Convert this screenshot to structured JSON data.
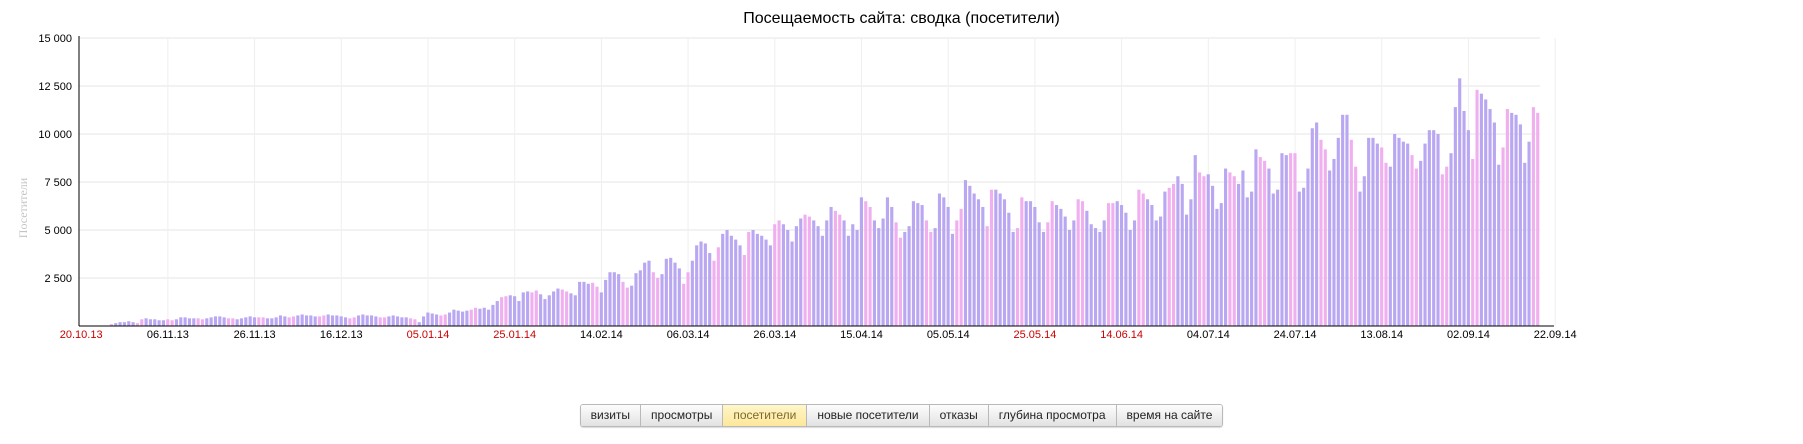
{
  "chart_data": {
    "type": "bar",
    "title": "Посещаемость сайта: сводка (посетители)",
    "ylabel": "Посетители",
    "ylim": [
      0,
      15000
    ],
    "yticks": [
      2500,
      5000,
      7500,
      10000,
      12500,
      15000
    ],
    "ytick_labels": [
      "2 500",
      "5 000",
      "7 500",
      "10 000",
      "12 500",
      "15 000"
    ],
    "x_start": "20.10.13",
    "x_ticks": [
      {
        "label": "20.10.13",
        "color": "#cc0000"
      },
      {
        "label": "06.11.13",
        "color": "#000000"
      },
      {
        "label": "26.11.13",
        "color": "#000000"
      },
      {
        "label": "16.12.13",
        "color": "#000000"
      },
      {
        "label": "05.01.14",
        "color": "#cc0000"
      },
      {
        "label": "25.01.14",
        "color": "#cc0000"
      },
      {
        "label": "14.02.14",
        "color": "#000000"
      },
      {
        "label": "06.03.14",
        "color": "#000000"
      },
      {
        "label": "26.03.14",
        "color": "#000000"
      },
      {
        "label": "15.04.14",
        "color": "#000000"
      },
      {
        "label": "05.05.14",
        "color": "#000000"
      },
      {
        "label": "25.05.14",
        "color": "#cc0000"
      },
      {
        "label": "14.06.14",
        "color": "#cc0000"
      },
      {
        "label": "04.07.14",
        "color": "#000000"
      },
      {
        "label": "24.07.14",
        "color": "#000000"
      },
      {
        "label": "13.08.14",
        "color": "#000000"
      },
      {
        "label": "02.09.14",
        "color": "#000000"
      },
      {
        "label": "22.09.14",
        "color": "#000000"
      }
    ],
    "weekday_color": "#b9a7f2",
    "weekend_color": "#f0b0f0",
    "grid": true,
    "legend": "none",
    "values": [
      0,
      0,
      0,
      0,
      0,
      0,
      0,
      100,
      150,
      200,
      200,
      250,
      200,
      150,
      350,
      400,
      350,
      350,
      300,
      300,
      350,
      300,
      350,
      450,
      450,
      400,
      400,
      400,
      350,
      400,
      450,
      500,
      500,
      450,
      400,
      400,
      350,
      400,
      450,
      500,
      450,
      450,
      450,
      400,
      400,
      450,
      550,
      500,
      450,
      500,
      550,
      600,
      550,
      550,
      500,
      500,
      550,
      600,
      550,
      550,
      500,
      450,
      400,
      450,
      550,
      600,
      550,
      550,
      500,
      450,
      450,
      500,
      550,
      500,
      450,
      450,
      400,
      350,
      200,
      500,
      700,
      650,
      600,
      550,
      600,
      700,
      850,
      800,
      750,
      800,
      850,
      950,
      900,
      950,
      850,
      1100,
      1300,
      1500,
      1550,
      1600,
      1550,
      1300,
      1750,
      1800,
      1750,
      1850,
      1650,
      1400,
      1600,
      1800,
      1950,
      1900,
      1800,
      1700,
      1600,
      2300,
      2300,
      2200,
      2250,
      2050,
      1750,
      2400,
      2800,
      2800,
      2700,
      2300,
      2000,
      2100,
      2750,
      2900,
      3300,
      3400,
      2800,
      2500,
      2700,
      3500,
      3550,
      3300,
      3000,
      2200,
      2800,
      3400,
      4200,
      4400,
      4300,
      3800,
      3400,
      4100,
      4800,
      5000,
      4700,
      4500,
      4200,
      3700,
      4900,
      5000,
      4800,
      4700,
      4500,
      4200,
      5300,
      5500,
      5300,
      5000,
      4400,
      5200,
      5600,
      5800,
      5700,
      5500,
      5200,
      4700,
      5500,
      6200,
      6000,
      5800,
      5500,
      4700,
      5300,
      5000,
      6700,
      6500,
      6200,
      5500,
      5100,
      5600,
      6700,
      6200,
      5400,
      4600,
      4900,
      5200,
      6500,
      6400,
      6300,
      5500,
      4900,
      5100,
      6900,
      6700,
      6200,
      4800,
      5500,
      6100,
      7600,
      7300,
      6900,
      6600,
      6200,
      5200,
      7100,
      7100,
      6900,
      6600,
      5900,
      4900,
      5100,
      6700,
      6500,
      6500,
      6200,
      5400,
      4900,
      5400,
      6500,
      6300,
      6100,
      5700,
      5000,
      5500,
      6600,
      6500,
      6000,
      5300,
      5100,
      4900,
      5500,
      6400,
      6400,
      6500,
      6300,
      5900,
      5000,
      5500,
      7100,
      6900,
      6600,
      6300,
      5500,
      5700,
      7000,
      7200,
      7400,
      7800,
      7400,
      5800,
      6600,
      8900,
      8000,
      7800,
      7900,
      7300,
      6100,
      6400,
      8200,
      8000,
      7800,
      7400,
      8100,
      6700,
      7000,
      9200,
      8800,
      8600,
      8200,
      6900,
      7100,
      9000,
      8900,
      9000,
      9000,
      7000,
      7200,
      8200,
      10300,
      10600,
      9700,
      9200,
      8100,
      8700,
      9800,
      11000,
      11000,
      9700,
      8300,
      7000,
      7800,
      9800,
      9800,
      9500,
      9300,
      8500,
      8300,
      10000,
      9800,
      9600,
      9500,
      8900,
      8200,
      8600,
      9500,
      10200,
      10200,
      10000,
      7900,
      8300,
      9000,
      11400,
      12900,
      11200,
      10200,
      8700,
      12300,
      12100,
      11800,
      11300,
      10600,
      8400,
      9300,
      11300,
      11100,
      11000,
      10500,
      8500,
      9600,
      11400,
      11100
    ]
  },
  "tabs": [
    {
      "label": "визиты",
      "active": false
    },
    {
      "label": "просмотры",
      "active": false
    },
    {
      "label": "посетители",
      "active": true
    },
    {
      "label": "новые посетители",
      "active": false
    },
    {
      "label": "отказы",
      "active": false
    },
    {
      "label": "глубина просмотра",
      "active": false
    },
    {
      "label": "время на сайте",
      "active": false
    }
  ]
}
